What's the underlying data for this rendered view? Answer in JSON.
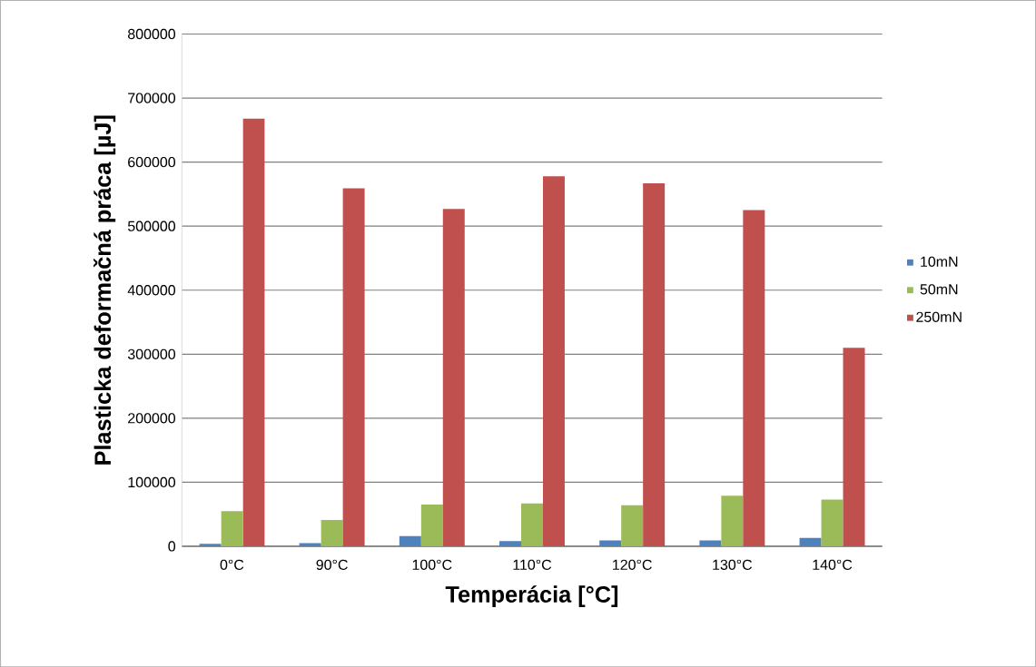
{
  "chart_data": {
    "type": "bar",
    "xlabel": "Temperácia [°C]",
    "ylabel": "Plasticka deformačná práca [µJ]",
    "categories": [
      "0°C",
      "90°C",
      "100°C",
      "110°C",
      "120°C",
      "130°C",
      "140°C"
    ],
    "series": [
      {
        "name": "10mN",
        "color": "#4f81bd",
        "values": [
          4000,
          5000,
          16000,
          8000,
          9000,
          9000,
          13000
        ]
      },
      {
        "name": "50mN",
        "color": "#9bbb59",
        "values": [
          55000,
          41000,
          65000,
          67000,
          64000,
          79000,
          73000
        ]
      },
      {
        "name": "250mN",
        "color": "#c0504d",
        "values": [
          668000,
          559000,
          527000,
          578000,
          567000,
          525000,
          310000
        ]
      }
    ],
    "ylim": [
      0,
      800000
    ],
    "yticks": [
      0,
      100000,
      200000,
      300000,
      400000,
      500000,
      600000,
      700000,
      800000
    ],
    "grid": "y",
    "legend": "right"
  }
}
